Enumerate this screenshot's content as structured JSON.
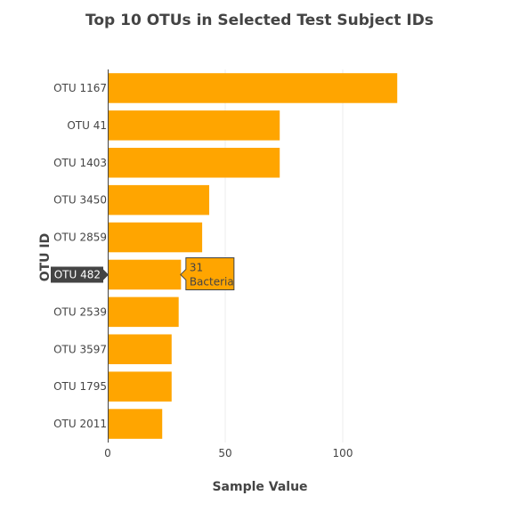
{
  "colors": {
    "bar": "#ffa500",
    "axis_line": "#444444",
    "grid": "#eeeeee",
    "text": "#444444",
    "hover_y_bg": "#444444"
  },
  "chart_data": {
    "type": "bar",
    "orientation": "horizontal",
    "title": "Top 10 OTUs in Selected Test Subject IDs",
    "xlabel": "Sample Value",
    "ylabel": "OTU ID",
    "xlim": [
      0,
      127
    ],
    "x_ticks": [
      0,
      50,
      100
    ],
    "grid": true,
    "categories": [
      "OTU 1167",
      "OTU 41",
      "OTU 1403",
      "OTU 3450",
      "OTU 2859",
      "OTU 482",
      "OTU 2539",
      "OTU 3597",
      "OTU 1795",
      "OTU 2011"
    ],
    "values": [
      123,
      73,
      73,
      43,
      40,
      31,
      30,
      27,
      27,
      23
    ],
    "hover": {
      "category": "OTU 482",
      "value_text": "31",
      "label_text": "Bacteria"
    }
  }
}
